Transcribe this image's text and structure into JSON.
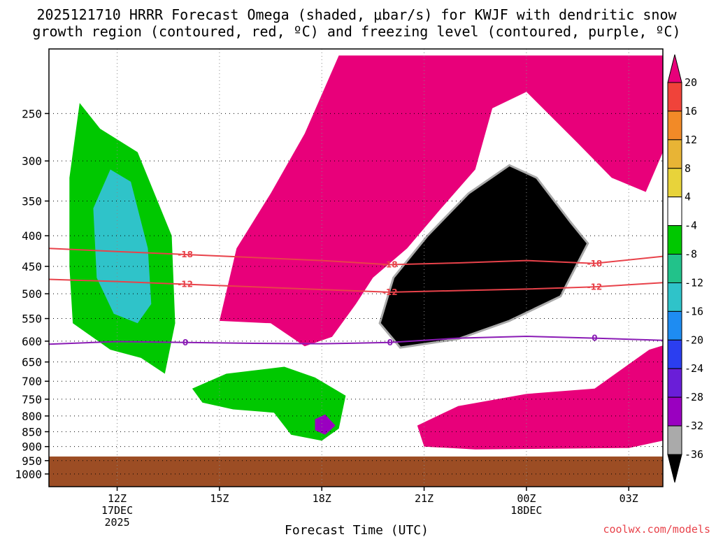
{
  "chart_data": {
    "type": "heatmap",
    "title_line1": "2025121710 HRRR Forecast Omega (shaded, μbar/s) for KWJF with dendritic snow",
    "title_line2": "growth region (contoured, red, ºC) and freezing level (contoured, purple, ºC)",
    "xlabel": "Forecast Time (UTC)",
    "credit": "coolwx.com/models",
    "y_axis": {
      "scale": "log-pressure",
      "reversed": true,
      "ylim_hPa": [
        1050,
        195
      ],
      "ticks": [
        {
          "value": 250,
          "label": "250"
        },
        {
          "value": 300,
          "label": "300"
        },
        {
          "value": 350,
          "label": "350"
        },
        {
          "value": 400,
          "label": "400"
        },
        {
          "value": 450,
          "label": "450"
        },
        {
          "value": 500,
          "label": "500"
        },
        {
          "value": 550,
          "label": "550"
        },
        {
          "value": 600,
          "label": "600"
        },
        {
          "value": 650,
          "label": "650"
        },
        {
          "value": 700,
          "label": "700"
        },
        {
          "value": 750,
          "label": "750"
        },
        {
          "value": 800,
          "label": "800"
        },
        {
          "value": 850,
          "label": "850"
        },
        {
          "value": 900,
          "label": "900"
        },
        {
          "value": 950,
          "label": "950"
        },
        {
          "value": 1000,
          "label": "1000"
        }
      ]
    },
    "x_axis": {
      "units": "hours after 2025-12-17 10Z",
      "xlim_h": [
        0,
        18
      ],
      "ticks": [
        {
          "value": 2,
          "lines": [
            "12Z",
            "17DEC",
            "2025"
          ]
        },
        {
          "value": 5,
          "lines": [
            "15Z"
          ]
        },
        {
          "value": 8,
          "lines": [
            "18Z"
          ]
        },
        {
          "value": 11,
          "lines": [
            "21Z"
          ]
        },
        {
          "value": 14,
          "lines": [
            "00Z",
            "18DEC"
          ]
        },
        {
          "value": 17,
          "lines": [
            "03Z"
          ]
        }
      ]
    },
    "grid": true,
    "ground_below_hPa": 935,
    "colorbar": {
      "labels": [
        "20",
        "16",
        "12",
        "8",
        "4",
        "-4",
        "-8",
        "-12",
        "-16",
        "-20",
        "-24",
        "-28",
        "-32",
        "-36"
      ],
      "colors": [
        "#e8007a",
        "#f0433a",
        "#f28a27",
        "#e8b435",
        "#e8d33a",
        "#ffffff",
        "#00c800",
        "#22c28a",
        "#2fc3c9",
        "#1e8cf2",
        "#2b3ef0",
        "#6a1ed8",
        "#9a00c0",
        "#aaaaaa",
        "#000000"
      ]
    },
    "dgz_contours": [
      {
        "label": "-18",
        "color": "#e8424a",
        "points": [
          [
            0,
            420
          ],
          [
            2,
            425
          ],
          [
            4,
            430
          ],
          [
            6,
            435
          ],
          [
            8,
            440
          ],
          [
            10,
            447
          ],
          [
            12,
            444
          ],
          [
            14,
            440
          ],
          [
            16,
            445
          ],
          [
            18,
            433
          ]
        ]
      },
      {
        "label": "-12",
        "color": "#e8424a",
        "points": [
          [
            0,
            473
          ],
          [
            2,
            477
          ],
          [
            4,
            482
          ],
          [
            6,
            487
          ],
          [
            8,
            492
          ],
          [
            10,
            497
          ],
          [
            12,
            494
          ],
          [
            14,
            491
          ],
          [
            16,
            487
          ],
          [
            18,
            479
          ]
        ]
      }
    ],
    "freezing_level": {
      "label": "0",
      "color": "#8a1bb5",
      "points": [
        [
          0,
          607
        ],
        [
          2,
          601
        ],
        [
          4,
          603
        ],
        [
          6,
          605
        ],
        [
          8,
          606
        ],
        [
          10,
          603
        ],
        [
          12,
          593
        ],
        [
          14,
          589
        ],
        [
          16,
          593
        ],
        [
          18,
          598
        ]
      ]
    },
    "omega_features": [
      {
        "region": "descending cell",
        "value": 20,
        "color": "#e8007a",
        "points": [
          [
            5,
            555
          ],
          [
            5.5,
            420
          ],
          [
            6.5,
            340
          ],
          [
            7.5,
            270
          ],
          [
            8.5,
            200
          ],
          [
            18,
            200
          ],
          [
            18,
            290
          ],
          [
            17.5,
            338
          ],
          [
            16.5,
            320
          ],
          [
            15.5,
            280
          ],
          [
            14,
            230
          ],
          [
            13,
            245
          ],
          [
            12.5,
            310
          ],
          [
            11.5,
            360
          ],
          [
            10.5,
            420
          ],
          [
            9.5,
            470
          ],
          [
            9,
            520
          ],
          [
            8.3,
            590
          ],
          [
            7.5,
            612
          ],
          [
            6.5,
            560
          ]
        ]
      },
      {
        "region": "lower descending cell",
        "value": 20,
        "color": "#e8007a",
        "points": [
          [
            11,
            900
          ],
          [
            10.8,
            830
          ],
          [
            12,
            770
          ],
          [
            14,
            735
          ],
          [
            16,
            720
          ],
          [
            17.6,
            620
          ],
          [
            18,
            610
          ],
          [
            18,
            880
          ],
          [
            17,
            905
          ],
          [
            12.5,
            910
          ]
        ]
      },
      {
        "region": "strong ascent core",
        "value": -36,
        "color": "#000000",
        "points": [
          [
            9.7,
            560
          ],
          [
            10.1,
            470
          ],
          [
            11.1,
            400
          ],
          [
            12.3,
            340
          ],
          [
            13.5,
            305
          ],
          [
            14.3,
            320
          ],
          [
            15.3,
            380
          ],
          [
            15.8,
            412
          ],
          [
            15,
            505
          ],
          [
            13.5,
            555
          ],
          [
            12,
            595
          ],
          [
            10.3,
            615
          ]
        ]
      },
      {
        "region": "western ascent band",
        "value": -8,
        "color": "#00c800",
        "points": [
          [
            0.6,
            320
          ],
          [
            0.9,
            240
          ],
          [
            1.5,
            265
          ],
          [
            2.6,
            290
          ],
          [
            3.6,
            400
          ],
          [
            3.7,
            560
          ],
          [
            3.4,
            680
          ],
          [
            2.7,
            640
          ],
          [
            1.8,
            620
          ],
          [
            0.7,
            560
          ],
          [
            0.6,
            450
          ]
        ]
      },
      {
        "region": "western ascent core",
        "value": -16,
        "color": "#2fc3c9",
        "points": [
          [
            1.3,
            360
          ],
          [
            1.8,
            310
          ],
          [
            2.4,
            325
          ],
          [
            2.9,
            420
          ],
          [
            3.0,
            520
          ],
          [
            2.6,
            560
          ],
          [
            1.9,
            540
          ],
          [
            1.4,
            470
          ]
        ]
      },
      {
        "region": "lower ascent cell",
        "value": -8,
        "color": "#00c800",
        "points": [
          [
            4.2,
            720
          ],
          [
            5.2,
            680
          ],
          [
            6.9,
            662
          ],
          [
            7.8,
            690
          ],
          [
            8.7,
            740
          ],
          [
            8.5,
            840
          ],
          [
            8.0,
            880
          ],
          [
            7.1,
            860
          ],
          [
            6.6,
            790
          ],
          [
            5.4,
            780
          ],
          [
            4.5,
            760
          ]
        ]
      },
      {
        "region": "lower ascent core",
        "value": -28,
        "color": "#9a00c0",
        "points": [
          [
            7.8,
            810
          ],
          [
            8.1,
            795
          ],
          [
            8.4,
            830
          ],
          [
            8.1,
            860
          ],
          [
            7.8,
            845
          ]
        ]
      }
    ]
  }
}
